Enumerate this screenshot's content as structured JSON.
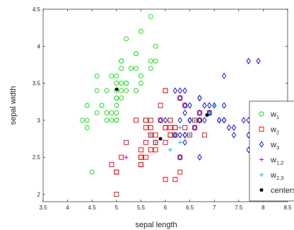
{
  "chart_data": {
    "type": "scatter",
    "xlabel": "sepal length",
    "ylabel": "sepal width",
    "xlim": [
      3.5,
      8.5
    ],
    "ylim": [
      1.9,
      4.5
    ],
    "xticks": [
      3.5,
      4,
      4.5,
      5,
      5.5,
      6,
      6.5,
      7,
      7.5,
      8,
      8.5
    ],
    "yticks": [
      2,
      2.5,
      3,
      3.5,
      4,
      4.5
    ],
    "grid": false,
    "legend_position": "bottom-right",
    "series": [
      {
        "name": "w1",
        "label_main": "w",
        "label_sub": "1",
        "marker": "circle",
        "color": "#00e000",
        "points": [
          [
            5.7,
            4.4
          ],
          [
            5.8,
            4.0
          ],
          [
            5.4,
            3.9
          ],
          [
            5.7,
            3.8
          ],
          [
            5.1,
            3.8
          ],
          [
            5.2,
            4.1
          ],
          [
            5.5,
            4.2
          ],
          [
            5.1,
            3.7
          ],
          [
            5.4,
            3.7
          ],
          [
            4.6,
            3.6
          ],
          [
            5.0,
            3.6
          ],
          [
            5.1,
            3.5
          ],
          [
            5.0,
            3.5
          ],
          [
            5.2,
            3.5
          ],
          [
            5.3,
            3.7
          ],
          [
            5.5,
            3.5
          ],
          [
            4.8,
            3.4
          ],
          [
            5.0,
            3.4
          ],
          [
            5.1,
            3.4
          ],
          [
            5.4,
            3.4
          ],
          [
            4.6,
            3.4
          ],
          [
            5.0,
            3.3
          ],
          [
            5.1,
            3.3
          ],
          [
            4.7,
            3.2
          ],
          [
            4.6,
            3.1
          ],
          [
            4.9,
            3.1
          ],
          [
            5.0,
            3.2
          ],
          [
            5.4,
            3.9
          ],
          [
            5.2,
            3.4
          ],
          [
            5.0,
            3.0
          ],
          [
            4.4,
            3.0
          ],
          [
            4.8,
            3.0
          ],
          [
            4.3,
            3.0
          ],
          [
            4.4,
            3.2
          ],
          [
            4.5,
            2.3
          ],
          [
            4.4,
            2.9
          ],
          [
            4.9,
            3.0
          ],
          [
            5.2,
            3.5
          ],
          [
            4.8,
            3.1
          ],
          [
            5.1,
            3.8
          ],
          [
            5.4,
            3.4
          ],
          [
            5.5,
            3.6
          ],
          [
            5.8,
            3.8
          ],
          [
            5.0,
            3.0
          ],
          [
            5.0,
            3.1
          ],
          [
            5.0,
            3.3
          ],
          [
            4.9,
            3.6
          ],
          [
            5.7,
            3.7
          ]
        ]
      },
      {
        "name": "w2",
        "label_main": "w",
        "label_sub": "2",
        "marker": "square",
        "color": "#e00000",
        "points": [
          [
            6.0,
            3.4
          ],
          [
            5.0,
            2.0
          ],
          [
            5.6,
            3.0
          ],
          [
            5.8,
            2.7
          ],
          [
            6.0,
            2.9
          ],
          [
            6.1,
            2.8
          ],
          [
            6.2,
            2.9
          ],
          [
            6.1,
            3.0
          ],
          [
            6.3,
            2.5
          ],
          [
            5.5,
            2.5
          ],
          [
            5.7,
            2.8
          ],
          [
            6.3,
            3.3
          ],
          [
            4.9,
            2.4
          ],
          [
            5.0,
            2.3
          ],
          [
            5.5,
            2.4
          ],
          [
            5.6,
            2.9
          ],
          [
            5.9,
            3.0
          ],
          [
            6.0,
            2.2
          ],
          [
            6.2,
            2.2
          ],
          [
            5.6,
            2.5
          ],
          [
            5.9,
            3.2
          ],
          [
            6.1,
            2.8
          ],
          [
            6.4,
            2.9
          ],
          [
            6.6,
            3.0
          ],
          [
            6.8,
            2.8
          ],
          [
            6.7,
            3.0
          ],
          [
            6.0,
            2.9
          ],
          [
            5.7,
            2.6
          ],
          [
            5.5,
            2.4
          ],
          [
            5.8,
            2.7
          ],
          [
            6.0,
            2.7
          ],
          [
            5.4,
            3.0
          ],
          [
            6.0,
            3.4
          ],
          [
            6.7,
            3.1
          ],
          [
            6.3,
            2.3
          ],
          [
            5.6,
            3.0
          ],
          [
            5.5,
            2.5
          ],
          [
            5.5,
            2.6
          ],
          [
            6.1,
            3.0
          ],
          [
            5.8,
            2.6
          ],
          [
            5.0,
            2.3
          ],
          [
            5.6,
            2.7
          ],
          [
            5.7,
            3.0
          ],
          [
            5.7,
            2.9
          ],
          [
            6.2,
            2.9
          ],
          [
            5.1,
            2.5
          ],
          [
            5.7,
            2.8
          ],
          [
            6.9,
            3.1
          ],
          [
            6.5,
            2.8
          ],
          [
            5.2,
            2.7
          ],
          [
            6.1,
            2.9
          ],
          [
            6.6,
            2.9
          ],
          [
            5.8,
            2.8
          ],
          [
            6.2,
            2.8
          ],
          [
            6.4,
            3.2
          ]
        ]
      },
      {
        "name": "w3",
        "label_main": "w",
        "label_sub": "3",
        "marker": "diamond",
        "color": "#0000dd",
        "points": [
          [
            6.3,
            3.3
          ],
          [
            7.1,
            3.0
          ],
          [
            6.5,
            3.0
          ],
          [
            7.6,
            3.0
          ],
          [
            7.3,
            2.9
          ],
          [
            6.7,
            2.5
          ],
          [
            7.2,
            3.6
          ],
          [
            6.5,
            3.2
          ],
          [
            6.4,
            2.7
          ],
          [
            6.8,
            3.0
          ],
          [
            6.4,
            3.2
          ],
          [
            6.5,
            3.0
          ],
          [
            7.7,
            3.8
          ],
          [
            7.7,
            2.6
          ],
          [
            6.9,
            3.2
          ],
          [
            7.7,
            2.8
          ],
          [
            6.7,
            3.3
          ],
          [
            7.2,
            3.2
          ],
          [
            6.2,
            2.8
          ],
          [
            6.4,
            2.8
          ],
          [
            7.2,
            3.0
          ],
          [
            7.4,
            2.8
          ],
          [
            7.9,
            3.8
          ],
          [
            6.4,
            2.8
          ],
          [
            6.3,
            2.8
          ],
          [
            7.7,
            3.0
          ],
          [
            6.3,
            3.4
          ],
          [
            6.4,
            3.1
          ],
          [
            6.0,
            3.0
          ],
          [
            6.9,
            3.1
          ],
          [
            6.7,
            3.1
          ],
          [
            6.9,
            3.1
          ],
          [
            6.8,
            3.2
          ],
          [
            6.7,
            3.3
          ],
          [
            6.7,
            3.0
          ],
          [
            6.3,
            2.5
          ],
          [
            6.5,
            3.0
          ],
          [
            6.2,
            3.4
          ],
          [
            5.9,
            3.0
          ],
          [
            6.4,
            3.4
          ],
          [
            7.1,
            3.0
          ],
          [
            6.6,
            2.9
          ],
          [
            7.0,
            3.2
          ],
          [
            6.9,
            3.1
          ],
          [
            7.4,
            2.9
          ],
          [
            6.3,
            3.0
          ],
          [
            7.2,
            3.0
          ],
          [
            6.7,
            3.0
          ]
        ]
      },
      {
        "name": "w1,2",
        "label_main": "w",
        "label_sub": "1,2",
        "marker": "plus",
        "color": "#c000c0",
        "points": [
          [
            5.2,
            2.5
          ]
        ]
      },
      {
        "name": "w2,3",
        "label_main": "w",
        "label_sub": "2,3",
        "marker": "plus",
        "color": "#00c8e6",
        "points": [
          [
            5.8,
            2.7
          ],
          [
            6.1,
            2.6
          ],
          [
            6.3,
            2.7
          ],
          [
            6.3,
            2.9
          ],
          [
            6.5,
            2.8
          ],
          [
            6.6,
            3.0
          ],
          [
            6.9,
            3.1
          ],
          [
            7.0,
            3.2
          ],
          [
            5.7,
            2.8
          ],
          [
            6.2,
            2.8
          ]
        ]
      },
      {
        "name": "centers",
        "label_main": "centers",
        "label_sub": "",
        "marker": "asterisk",
        "color": "#000000",
        "points": [
          [
            5.006,
            3.418
          ],
          [
            5.9,
            2.75
          ],
          [
            6.85,
            3.07
          ]
        ]
      }
    ]
  }
}
